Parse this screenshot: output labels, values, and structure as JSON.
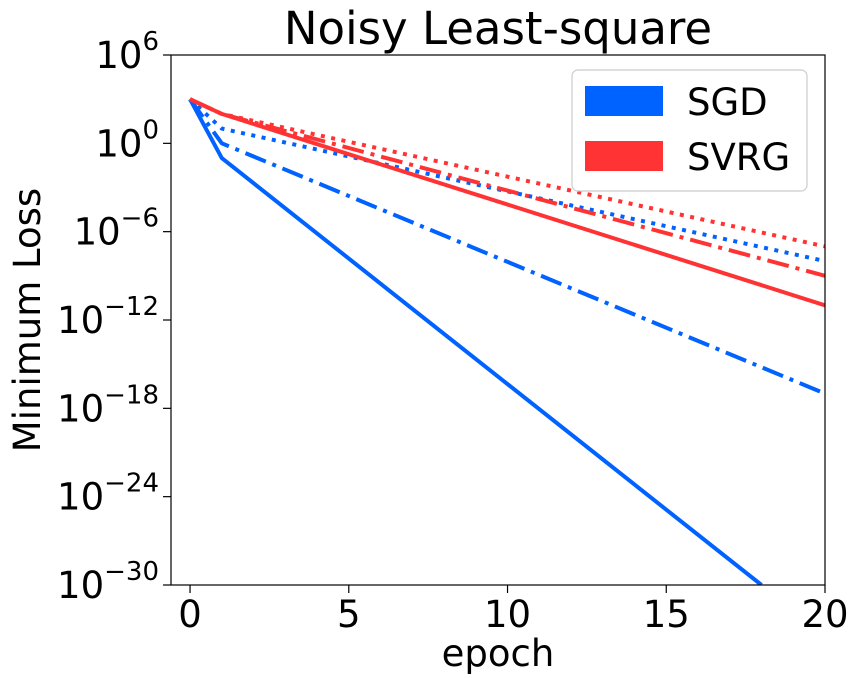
{
  "chart_data": {
    "type": "line",
    "title": "Noisy Least-square",
    "xlabel": "epoch",
    "ylabel": "Minimum Loss",
    "xlim": [
      -0.6,
      20
    ],
    "ylim": [
      1e-30,
      1000000.0
    ],
    "yscale": "log",
    "grid": false,
    "legend_position": "top-right",
    "x_ticks": [
      "0",
      "5",
      "10",
      "15",
      "20"
    ],
    "y_ticks": [
      {
        "base": "10",
        "exp": "6"
      },
      {
        "base": "10",
        "exp": "0"
      },
      {
        "base": "10",
        "exp": "−6"
      },
      {
        "base": "10",
        "exp": "−12"
      },
      {
        "base": "10",
        "exp": "−18"
      },
      {
        "base": "10",
        "exp": "−24"
      },
      {
        "base": "10",
        "exp": "−30"
      }
    ],
    "legend": [
      {
        "label": "SGD",
        "color": "#0062ff"
      },
      {
        "label": "SVRG",
        "color": "#ff3333"
      }
    ],
    "series": [
      {
        "group": "SGD",
        "color": "#0062ff",
        "dash": "solid",
        "x": [
          0,
          1,
          18
        ],
        "y": [
          1000.0,
          0.1,
          1e-30
        ]
      },
      {
        "group": "SGD",
        "color": "#0062ff",
        "dash": "dashdot",
        "x": [
          0,
          1,
          20
        ],
        "y": [
          1000.0,
          1.0,
          1e-17
        ]
      },
      {
        "group": "SGD",
        "color": "#0062ff",
        "dash": "dotted",
        "x": [
          0,
          1,
          20
        ],
        "y": [
          1000.0,
          10.0,
          1e-08
        ]
      },
      {
        "group": "SVRG",
        "color": "#ff3333",
        "dash": "solid",
        "x": [
          0,
          1,
          20
        ],
        "y": [
          1000.0,
          100.0,
          1e-11
        ]
      },
      {
        "group": "SVRG",
        "color": "#ff3333",
        "dash": "dashdot",
        "x": [
          0,
          1,
          20
        ],
        "y": [
          1000.0,
          100.0,
          1e-09
        ]
      },
      {
        "group": "SVRG",
        "color": "#ff3333",
        "dash": "dotted",
        "x": [
          0,
          1,
          20
        ],
        "y": [
          1000.0,
          100.0,
          1e-07
        ]
      }
    ]
  }
}
